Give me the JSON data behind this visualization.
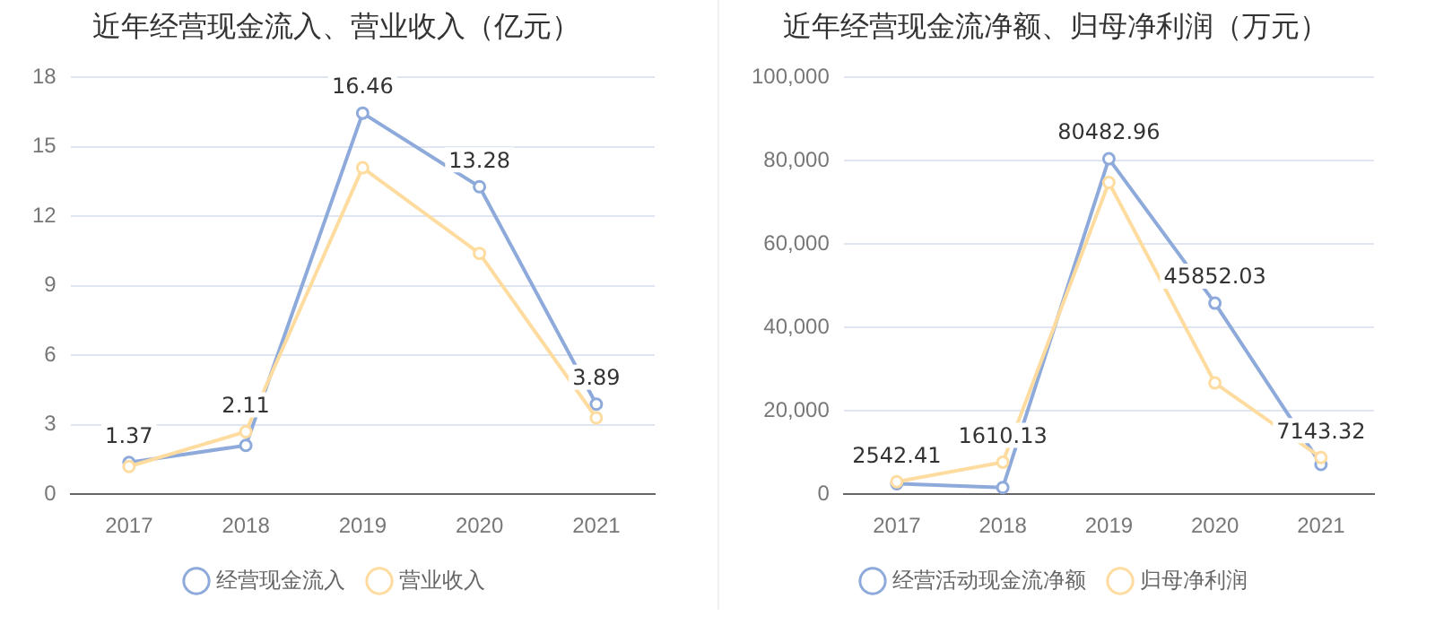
{
  "chart_data": [
    {
      "type": "line",
      "title": "近年经营现金流入、营业收入（亿元）",
      "categories": [
        "2017",
        "2018",
        "2019",
        "2020",
        "2021"
      ],
      "series": [
        {
          "name": "经营现金流入",
          "color": "#8eaadb",
          "values": [
            1.37,
            2.11,
            16.46,
            13.28,
            3.89
          ],
          "value_labels": [
            "1.37",
            "2.11",
            "16.46",
            "13.28",
            "3.89"
          ]
        },
        {
          "name": "营业收入",
          "color": "#fedc9f",
          "values": [
            1.2,
            2.7,
            14.1,
            10.4,
            3.3
          ]
        }
      ],
      "ylim": [
        0,
        18
      ],
      "yticks": [
        0,
        3,
        6,
        9,
        12,
        15,
        18
      ],
      "grid": "y",
      "legend": "bottom",
      "marker": "circle",
      "line_style": "solid"
    },
    {
      "type": "line",
      "title": "近年经营现金流净额、归母净利润（万元）",
      "categories": [
        "2017",
        "2018",
        "2019",
        "2020",
        "2021"
      ],
      "series": [
        {
          "name": "经营活动现金流净额",
          "color": "#8eaadb",
          "values": [
            2542.41,
            1610.13,
            80482.96,
            45852.03,
            7143.32
          ],
          "value_labels": [
            "2542.41",
            "1610.13",
            "80482.96",
            "45852.03",
            "7143.32"
          ]
        },
        {
          "name": "归母净利润",
          "color": "#fedc9f",
          "values": [
            3000,
            7700,
            74800,
            26700,
            8800
          ]
        }
      ],
      "ylim": [
        0,
        100000
      ],
      "yticks": [
        {
          "value": 0,
          "label": "0"
        },
        {
          "value": 20000,
          "label": "20,000"
        },
        {
          "value": 40000,
          "label": "40,000"
        },
        {
          "value": 60000,
          "label": "60,000"
        },
        {
          "value": 80000,
          "label": "80,000"
        },
        {
          "value": 100000,
          "label": "100,000"
        }
      ],
      "grid": "y",
      "legend": "bottom",
      "marker": "circle",
      "line_style": "solid"
    }
  ]
}
